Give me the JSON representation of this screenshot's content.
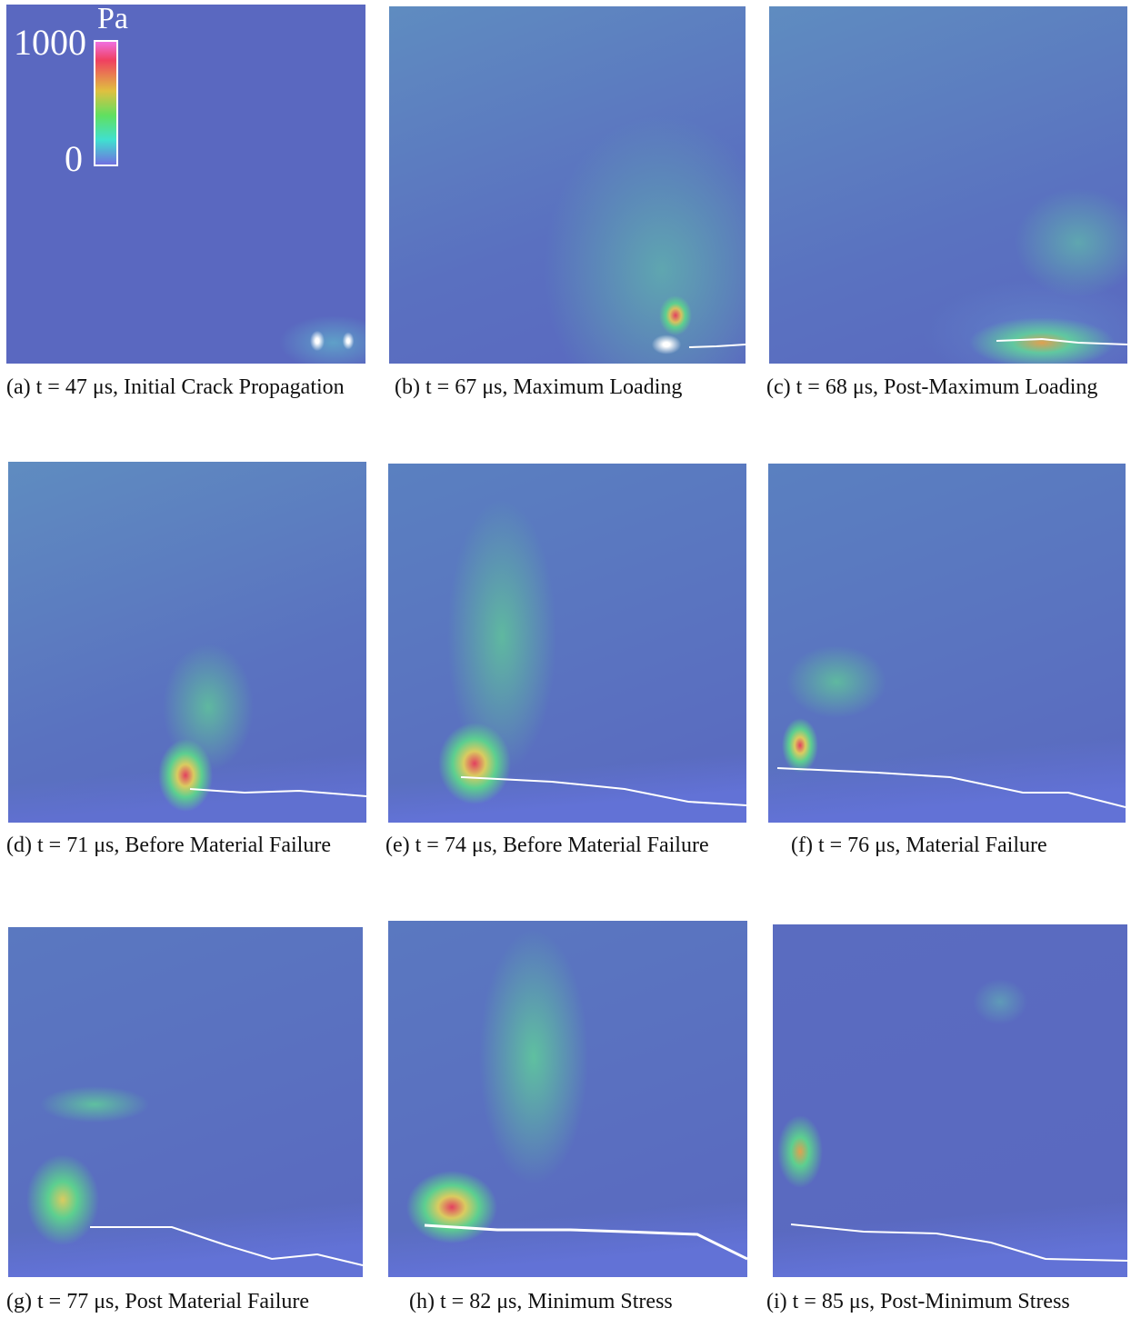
{
  "colorbar": {
    "unit": "Pa",
    "max": 1000,
    "min": 0
  },
  "panels": [
    {
      "caption": "(a) t = 47 μs, Initial Crack Propagation"
    },
    {
      "caption": "(b) t = 67 μs, Maximum Loading"
    },
    {
      "caption": "(c) t = 68 μs, Post-Maximum Loading"
    },
    {
      "caption": "(d) t = 71 μs, Before Material Failure"
    },
    {
      "caption": "(e) t = 74 μs, Before Material Failure"
    },
    {
      "caption": "(f) t = 76 μs, Material Failure"
    },
    {
      "caption": "(g) t = 77 μs, Post Material Failure"
    },
    {
      "caption": "(h) t = 82 μs, Minimum Stress"
    },
    {
      "caption": "(i) t = 85 μs, Post-Minimum Stress"
    }
  ]
}
